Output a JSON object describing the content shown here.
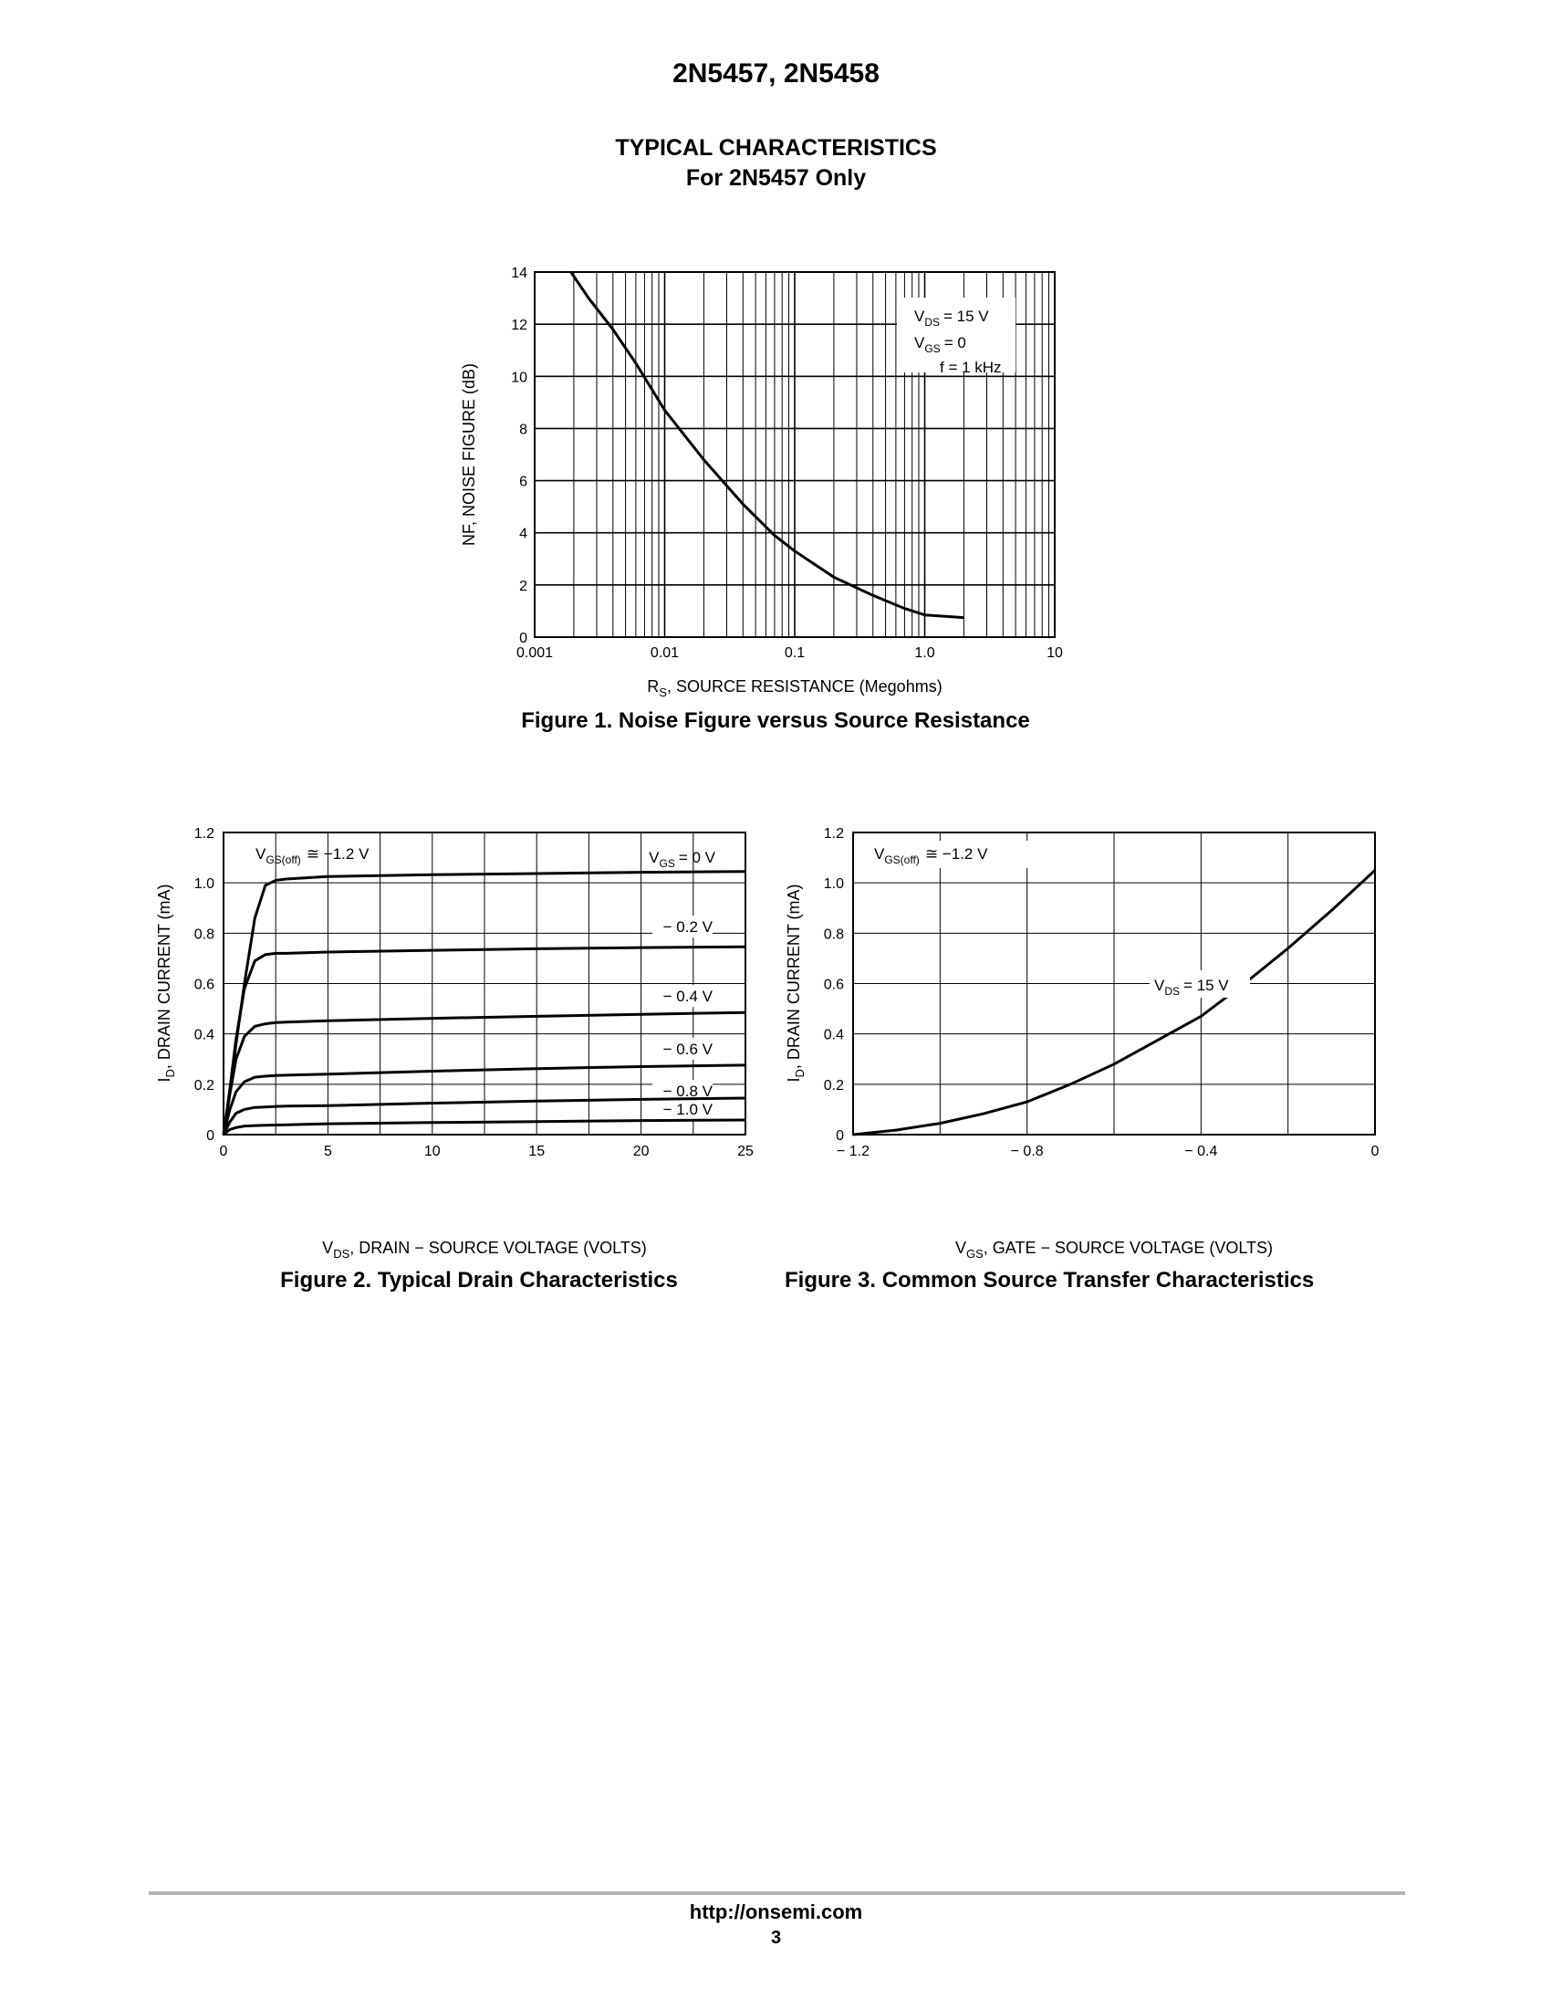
{
  "header": {
    "part_numbers": "2N5457, 2N5458"
  },
  "section": {
    "title": "TYPICAL CHARACTERISTICS",
    "subtitle": "For 2N5457 Only"
  },
  "figure1": {
    "caption": "Figure 1. Noise Figure versus Source Resistance",
    "conditions": [
      "= 15 V",
      "= 0",
      "f = 1 kHz"
    ],
    "chart_data": {
      "type": "line",
      "title": "",
      "xlabel": "R_S, SOURCE RESISTANCE (Megohms)",
      "ylabel": "NF, NOISE FIGURE (dB)",
      "x_scale": "log",
      "xlim": [
        0.001,
        10
      ],
      "ylim": [
        0,
        14
      ],
      "x_ticks": [
        "0.001",
        "0.01",
        "0.1",
        "1.0",
        "10"
      ],
      "y_ticks": [
        "0",
        "2",
        "4",
        "6",
        "8",
        "10",
        "12",
        "14"
      ],
      "grid": true,
      "series": [
        {
          "x": [
            0.0019,
            0.0026,
            0.004,
            0.006,
            0.01,
            0.02,
            0.04,
            0.07,
            0.1,
            0.2,
            0.4,
            0.7,
            1.0,
            2.0
          ],
          "y": [
            14,
            13,
            11.8,
            10.5,
            8.7,
            6.8,
            5.1,
            3.9,
            3.3,
            2.3,
            1.6,
            1.1,
            0.85,
            0.75
          ]
        }
      ]
    }
  },
  "figure2": {
    "caption": "Figure 2. Typical Drain Characteristics",
    "vgs_off_label": "≅ −1.2 V",
    "curve_labels": [
      "= 0 V",
      "− 0.2 V",
      "− 0.4 V",
      "− 0.6 V",
      "− 0.8 V",
      "− 1.0 V"
    ],
    "chart_data": {
      "type": "line",
      "title": "",
      "xlabel": "V_DS, DRAIN − SOURCE VOLTAGE (VOLTS)",
      "ylabel": "I_D, DRAIN CURRENT (mA)",
      "xlim": [
        0,
        25
      ],
      "ylim": [
        0,
        1.2
      ],
      "x_ticks": [
        "0",
        "5",
        "10",
        "15",
        "20",
        "25"
      ],
      "y_ticks": [
        "0",
        "0.2",
        "0.4",
        "0.6",
        "0.8",
        "1.0",
        "1.2"
      ],
      "grid": true,
      "x": [
        0,
        0.3,
        0.6,
        1.0,
        1.5,
        2.0,
        2.5,
        3,
        5,
        10,
        15,
        20,
        25
      ],
      "series": [
        {
          "name": "V_GS = 0 V",
          "values": [
            0,
            0.17,
            0.36,
            0.6,
            0.86,
            0.99,
            1.01,
            1.015,
            1.025,
            1.032,
            1.037,
            1.042,
            1.045
          ]
        },
        {
          "name": "−0.2 V",
          "values": [
            0,
            0.18,
            0.38,
            0.58,
            0.69,
            0.715,
            0.72,
            0.72,
            0.725,
            0.732,
            0.738,
            0.743,
            0.746
          ]
        },
        {
          "name": "−0.4 V",
          "values": [
            0,
            0.16,
            0.3,
            0.39,
            0.43,
            0.44,
            0.445,
            0.447,
            0.452,
            0.462,
            0.47,
            0.478,
            0.485
          ]
        },
        {
          "name": "−0.6 V",
          "values": [
            0,
            0.1,
            0.17,
            0.21,
            0.228,
            0.232,
            0.235,
            0.236,
            0.24,
            0.252,
            0.262,
            0.27,
            0.276
          ]
        },
        {
          "name": "−0.8 V",
          "values": [
            0,
            0.05,
            0.085,
            0.1,
            0.108,
            0.11,
            0.112,
            0.113,
            0.115,
            0.125,
            0.133,
            0.14,
            0.145
          ]
        },
        {
          "name": "−1.0 V",
          "values": [
            0,
            0.02,
            0.028,
            0.034,
            0.036,
            0.037,
            0.038,
            0.039,
            0.043,
            0.048,
            0.052,
            0.056,
            0.058
          ]
        }
      ]
    }
  },
  "figure3": {
    "caption": "Figure 3. Common Source Transfer Characteristics",
    "vgs_off_label": "≅ −1.2 V",
    "vds_label": "= 15 V",
    "chart_data": {
      "type": "line",
      "title": "",
      "xlabel": "V_GS, GATE − SOURCE VOLTAGE (VOLTS)",
      "ylabel": "I_D, DRAIN CURRENT (mA)",
      "xlim": [
        -1.2,
        0
      ],
      "ylim": [
        0,
        1.2
      ],
      "x_ticks": [
        "− 1.2",
        "− 0.8",
        "− 0.4",
        "0"
      ],
      "y_ticks": [
        "0",
        "0.2",
        "0.4",
        "0.6",
        "0.8",
        "1.0",
        "1.2"
      ],
      "grid": true,
      "series": [
        {
          "name": "V_DS = 15 V",
          "x": [
            -1.2,
            -1.1,
            -1.0,
            -0.9,
            -0.8,
            -0.7,
            -0.6,
            -0.5,
            -0.4,
            -0.3,
            -0.2,
            -0.1,
            0.0
          ],
          "y": [
            0.0,
            0.018,
            0.045,
            0.083,
            0.13,
            0.2,
            0.28,
            0.375,
            0.47,
            0.6,
            0.74,
            0.89,
            1.05
          ]
        }
      ]
    }
  },
  "footer": {
    "url": "http://onsemi.com",
    "page": "3"
  }
}
